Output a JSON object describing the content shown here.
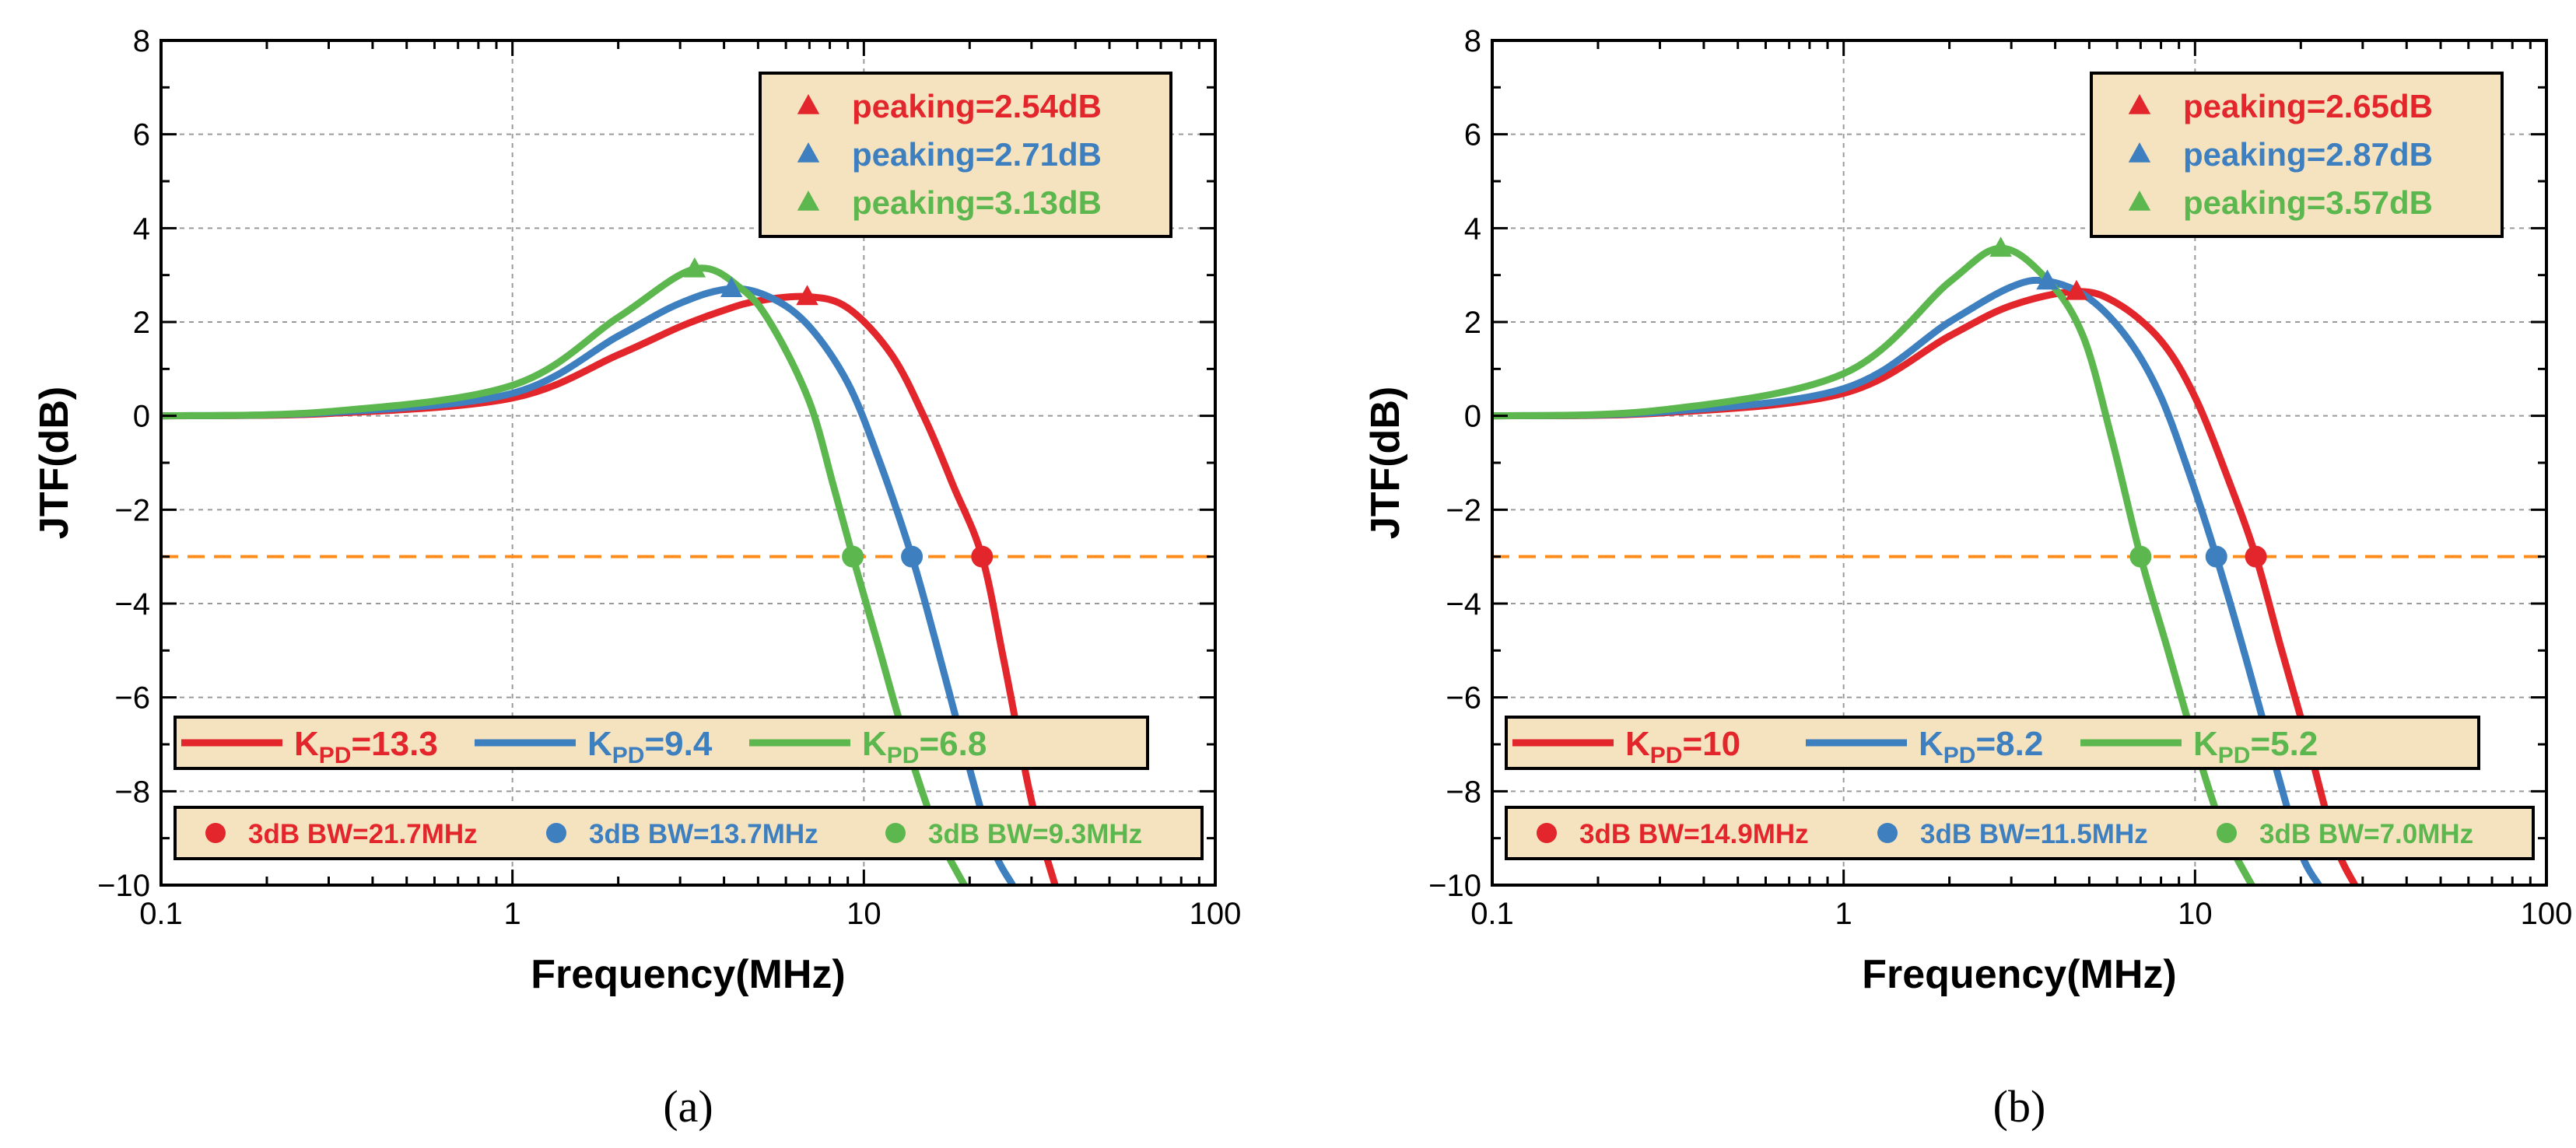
{
  "colors": {
    "red": "#E3262B",
    "blue": "#3D7FBF",
    "green": "#5CB74E",
    "reference": "#FF8C1A",
    "legend_bg": "#F5E3C0",
    "grid": "#9A9A9A"
  },
  "chart_data": [
    {
      "type": "line",
      "panel_label": "(a)",
      "xlabel": "Frequency(MHz)",
      "ylabel": "JTF(dB)",
      "xscale": "log",
      "xlim": [
        0.1,
        100
      ],
      "ylim": [
        -10,
        8
      ],
      "x_ticks": [
        "0.1",
        "1",
        "10",
        "100"
      ],
      "y_ticks": [
        "−10",
        "−8",
        "−6",
        "−4",
        "−2",
        "0",
        "2",
        "4",
        "6",
        "8"
      ],
      "grid": true,
      "reference_line_db": -3,
      "series": [
        {
          "name": "K_PD=13.3",
          "color_key": "red",
          "x": [
            0.1,
            0.3,
            1,
            2,
            3,
            4,
            5,
            6.9,
            9,
            12,
            15,
            18,
            21.7,
            25,
            30,
            35
          ],
          "y": [
            0.0,
            0.05,
            0.38,
            1.3,
            1.9,
            2.25,
            2.45,
            2.54,
            2.3,
            1.3,
            -0.1,
            -1.5,
            -3.0,
            -5.2,
            -8.2,
            -10.0
          ]
        },
        {
          "name": "K_PD=9.4",
          "color_key": "blue",
          "x": [
            0.1,
            0.3,
            1,
            2,
            3,
            4.2,
            5.5,
            7,
            9,
            11,
            13.7,
            16,
            19,
            23,
            26.5
          ],
          "y": [
            0.0,
            0.07,
            0.48,
            1.7,
            2.4,
            2.71,
            2.5,
            1.9,
            0.7,
            -0.9,
            -3.0,
            -4.8,
            -6.9,
            -9.1,
            -10.0
          ]
        },
        {
          "name": "K_PD=6.8",
          "color_key": "green",
          "x": [
            0.1,
            0.3,
            1,
            2,
            3.3,
            4.5,
            5.5,
            7,
            8.2,
            9.3,
            11,
            13,
            16,
            19.3
          ],
          "y": [
            0.0,
            0.09,
            0.65,
            2.1,
            3.13,
            2.7,
            1.9,
            0.3,
            -1.5,
            -3.0,
            -4.9,
            -6.8,
            -8.8,
            -10.0
          ]
        }
      ],
      "peak_markers": [
        {
          "color_key": "red",
          "x": 6.9,
          "y": 2.54
        },
        {
          "color_key": "blue",
          "x": 4.2,
          "y": 2.71
        },
        {
          "color_key": "green",
          "x": 3.3,
          "y": 3.13
        }
      ],
      "bw_markers": [
        {
          "color_key": "red",
          "x": 21.7,
          "y": -3
        },
        {
          "color_key": "blue",
          "x": 13.7,
          "y": -3
        },
        {
          "color_key": "green",
          "x": 9.3,
          "y": -3
        }
      ],
      "legend_peaking": [
        {
          "color_key": "red",
          "text": "peaking=2.54dB"
        },
        {
          "color_key": "blue",
          "text": "peaking=2.71dB"
        },
        {
          "color_key": "green",
          "text": "peaking=3.13dB"
        }
      ],
      "legend_kpd": [
        {
          "color_key": "red",
          "value": "13.3"
        },
        {
          "color_key": "blue",
          "value": "9.4"
        },
        {
          "color_key": "green",
          "value": "6.8"
        }
      ],
      "legend_bw": [
        {
          "color_key": "red",
          "text": "3dB BW=21.7MHz"
        },
        {
          "color_key": "blue",
          "text": "3dB BW=13.7MHz"
        },
        {
          "color_key": "green",
          "text": "3dB BW=9.3MHz"
        }
      ]
    },
    {
      "type": "line",
      "panel_label": "(b)",
      "xlabel": "Frequency(MHz)",
      "ylabel": "JTF(dB)",
      "xscale": "log",
      "xlim": [
        0.1,
        100
      ],
      "ylim": [
        -10,
        8
      ],
      "x_ticks": [
        "0.1",
        "1",
        "10",
        "100"
      ],
      "y_ticks": [
        "−10",
        "−8",
        "−6",
        "−4",
        "−2",
        "0",
        "2",
        "4",
        "6",
        "8"
      ],
      "grid": true,
      "reference_line_db": -3,
      "series": [
        {
          "name": "K_PD=10",
          "color_key": "red",
          "x": [
            0.1,
            0.3,
            1,
            2,
            3,
            4.6,
            6,
            8,
            10,
            12.5,
            14.9,
            17.5,
            21,
            25,
            28.5
          ],
          "y": [
            0.0,
            0.06,
            0.48,
            1.7,
            2.35,
            2.65,
            2.4,
            1.6,
            0.4,
            -1.4,
            -3.0,
            -4.9,
            -7.0,
            -9.1,
            -10.0
          ]
        },
        {
          "name": "K_PD=8.2",
          "color_key": "blue",
          "x": [
            0.1,
            0.3,
            1,
            2,
            3,
            3.8,
            5,
            6.5,
            8,
            9.7,
            11.5,
            14,
            17,
            20,
            22.5
          ],
          "y": [
            0.0,
            0.08,
            0.58,
            2.0,
            2.75,
            2.87,
            2.5,
            1.6,
            0.4,
            -1.3,
            -3.0,
            -5.2,
            -7.5,
            -9.3,
            -10.0
          ]
        },
        {
          "name": "K_PD=5.2",
          "color_key": "green",
          "x": [
            0.1,
            0.3,
            1,
            2,
            2.8,
            3.8,
            4.8,
            5.8,
            7.0,
            8.3,
            10,
            12,
            14.5
          ],
          "y": [
            0.0,
            0.12,
            0.9,
            2.85,
            3.57,
            2.9,
            1.7,
            -0.5,
            -3.0,
            -4.9,
            -7.0,
            -8.8,
            -10.0
          ]
        }
      ],
      "peak_markers": [
        {
          "color_key": "red",
          "x": 4.6,
          "y": 2.65
        },
        {
          "color_key": "blue",
          "x": 3.8,
          "y": 2.87
        },
        {
          "color_key": "green",
          "x": 2.8,
          "y": 3.57
        }
      ],
      "bw_markers": [
        {
          "color_key": "red",
          "x": 14.9,
          "y": -3
        },
        {
          "color_key": "blue",
          "x": 11.5,
          "y": -3
        },
        {
          "color_key": "green",
          "x": 7.0,
          "y": -3
        }
      ],
      "legend_peaking": [
        {
          "color_key": "red",
          "text": "peaking=2.65dB"
        },
        {
          "color_key": "blue",
          "text": "peaking=2.87dB"
        },
        {
          "color_key": "green",
          "text": "peaking=3.57dB"
        }
      ],
      "legend_kpd": [
        {
          "color_key": "red",
          "value": "10"
        },
        {
          "color_key": "blue",
          "value": "8.2"
        },
        {
          "color_key": "green",
          "value": "5.2"
        }
      ],
      "legend_bw": [
        {
          "color_key": "red",
          "text": "3dB BW=14.9MHz"
        },
        {
          "color_key": "blue",
          "text": "3dB BW=11.5MHz"
        },
        {
          "color_key": "green",
          "text": "3dB BW=7.0MHz"
        }
      ]
    }
  ]
}
